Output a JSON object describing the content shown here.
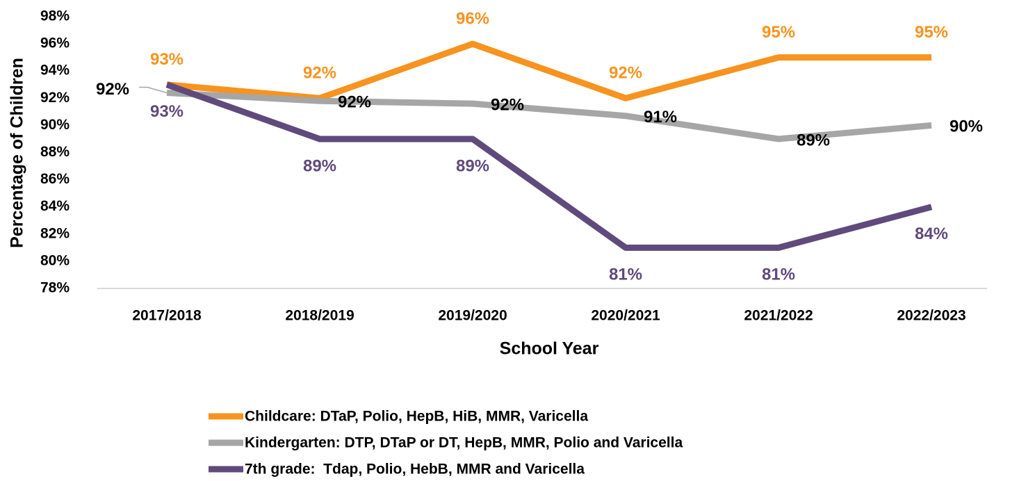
{
  "chart_data": {
    "type": "line",
    "x_label": "School Year",
    "y_label": "Percentage of Children",
    "categories": [
      "2017/2018",
      "2018/2019",
      "2019/2020",
      "2020/2021",
      "2021/2022",
      "2022/2023"
    ],
    "ylim": [
      78,
      98
    ],
    "yticks": [
      {
        "value": 78,
        "label": "78%"
      },
      {
        "value": 80,
        "label": "80%"
      },
      {
        "value": 82,
        "label": "82%"
      },
      {
        "value": 84,
        "label": "84%"
      },
      {
        "value": 86,
        "label": "86%"
      },
      {
        "value": 88,
        "label": "88%"
      },
      {
        "value": 90,
        "label": "90%"
      },
      {
        "value": 92,
        "label": "92%"
      },
      {
        "value": 94,
        "label": "94%"
      },
      {
        "value": 96,
        "label": "96%"
      },
      {
        "value": 98,
        "label": "98%"
      }
    ],
    "grid": false,
    "legend": "bottom",
    "series": [
      {
        "name": "Childcare: DTaP, Polio, HepB, HiB, MMR, Varicella",
        "color": "#f7931e",
        "values": [
          93,
          92,
          96,
          92,
          95,
          95
        ],
        "value_labels": [
          "93%",
          "92%",
          "96%",
          "92%",
          "95%",
          "95%"
        ]
      },
      {
        "name": "Kindergarten: DTP, DTaP or DT, HepB, MMR, Polio and Varicella",
        "color": "#a6a6a6",
        "values": [
          92.4,
          91.8,
          91.6,
          90.7,
          89,
          90
        ],
        "value_labels": [
          "92%",
          "92%",
          "92%",
          "91%",
          "89%",
          "90%"
        ]
      },
      {
        "name": "7th grade:  Tdap, Polio, HebB, MMR and Varicella",
        "color": "#604a7b",
        "values": [
          93,
          89,
          89,
          81,
          81,
          84
        ],
        "value_labels": [
          "93%",
          "89%",
          "89%",
          "81%",
          "81%",
          "84%"
        ]
      }
    ]
  }
}
